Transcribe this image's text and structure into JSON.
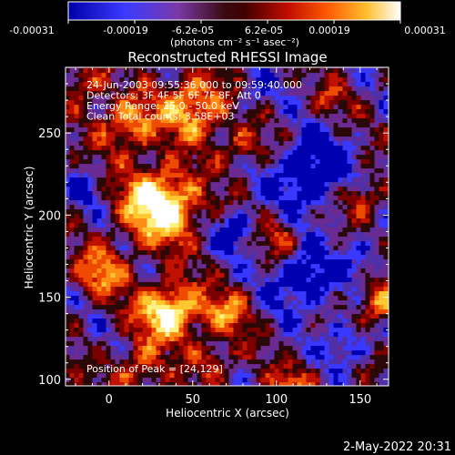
{
  "chart_data": {
    "type": "heatmap",
    "title": "Reconstructed RHESSI Image",
    "xlabel": "Heliocentric X (arcsec)",
    "ylabel": "Heliocentric Y (arcsec)",
    "x_ticks": [
      0,
      50,
      100,
      150
    ],
    "y_ticks": [
      100,
      150,
      200,
      250
    ],
    "xlim": [
      -26,
      167
    ],
    "ylim": [
      96,
      290
    ],
    "colorbar": {
      "tick_labels": [
        "-0.00031",
        "-0.00019",
        "-6.2e-05",
        "6.2e-05",
        "0.00019",
        "0.00031"
      ],
      "range": [
        -0.00031,
        0.00031
      ],
      "unit_label": "(photons cm⁻² s⁻¹ asec⁻²)",
      "colors": [
        "#0000b0",
        "#3838ff",
        "#5030a8",
        "#6a2a90",
        "#2a0808",
        "#7a0000",
        "#c01000",
        "#ee4a00",
        "#ff8c14",
        "#ffc830",
        "#fff080",
        "#ffffff"
      ]
    },
    "annotations": [
      "24-Jun-2003 09:55:36.000 to 09:59:40.000",
      "Detectors: 3F 4F 5F 6F 7F 8F, Att 0",
      "Energy Range: 25.0 - 50.0 keV",
      "Clean    Total counts: 3.58E+03"
    ],
    "peak_label": "Position of Peak = [24,129]",
    "peak": [
      24,
      129
    ]
  },
  "footer": {
    "timestamp": "2-May-2022 20:31"
  }
}
